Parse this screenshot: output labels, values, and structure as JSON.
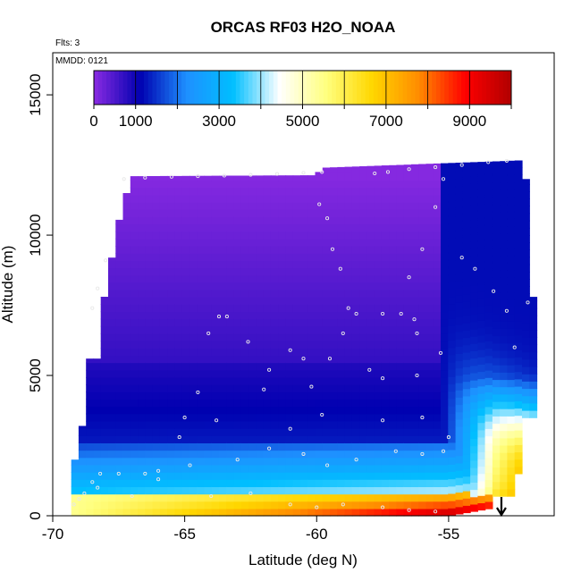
{
  "chart_data": {
    "type": "heatmap",
    "title": "ORCAS RF03 H2O_NOAA",
    "xlabel": "Latitude (deg N)",
    "ylabel": "Altitude (m)",
    "flights_note": "Flts: 3",
    "date_note": "MMDD: 0121",
    "xlim": [
      -70,
      -51
    ],
    "ylim": [
      0,
      16500
    ],
    "x_ticks": [
      -70,
      -65,
      -60,
      -55
    ],
    "y_ticks": [
      0,
      5000,
      10000,
      15000
    ],
    "colorbar": {
      "range": [
        0,
        10000
      ],
      "tick_values": [
        0,
        1000,
        3000,
        5000,
        7000,
        9000
      ],
      "divisions": [
        1000,
        2000,
        3000,
        4000,
        5000,
        6000,
        7000,
        8000,
        9000
      ],
      "colors": [
        "#8a2be2",
        "#0000b0",
        "#1e90ff",
        "#00bfff",
        "#ffffff",
        "#ffff80",
        "#ffd700",
        "#ff8c00",
        "#ff0000",
        "#b00000"
      ]
    },
    "arrow_marker_lat": -53,
    "flight_track": [
      [
        -67.3,
        12000
      ],
      [
        -66.5,
        12050
      ],
      [
        -65.5,
        12080
      ],
      [
        -64.5,
        12100
      ],
      [
        -63.5,
        12120
      ],
      [
        -62.5,
        12150
      ],
      [
        -61.5,
        12180
      ],
      [
        -60.5,
        12220
      ],
      [
        -59.8,
        12250
      ],
      [
        -57.8,
        12200
      ],
      [
        -57.3,
        12250
      ],
      [
        -56.5,
        12350
      ],
      [
        -55.5,
        12420
      ],
      [
        -54.5,
        12500
      ],
      [
        -53.5,
        12600
      ],
      [
        -52.8,
        12650
      ],
      [
        -59.9,
        11100
      ],
      [
        -59.6,
        10600
      ],
      [
        -59.4,
        9500
      ],
      [
        -59.1,
        8800
      ],
      [
        -58.8,
        7400
      ],
      [
        -58.5,
        7200
      ],
      [
        -57.5,
        7200
      ],
      [
        -56.8,
        7200
      ],
      [
        -56.3,
        7000
      ],
      [
        -56.5,
        8500
      ],
      [
        -56.0,
        9500
      ],
      [
        -55.5,
        11000
      ],
      [
        -55.2,
        12000
      ],
      [
        -54.5,
        9200
      ],
      [
        -54.0,
        8800
      ],
      [
        -53.3,
        8000
      ],
      [
        -52.8,
        7300
      ],
      [
        -52.0,
        7600
      ],
      [
        -52.5,
        6000
      ],
      [
        -56.2,
        6500
      ],
      [
        -59.0,
        6500
      ],
      [
        -68.3,
        8100
      ],
      [
        -68.5,
        7400
      ],
      [
        -68.0,
        9100
      ],
      [
        -63.7,
        7100
      ],
      [
        -63.4,
        7100
      ],
      [
        -64.1,
        6500
      ],
      [
        -62.6,
        6200
      ],
      [
        -61.8,
        5200
      ],
      [
        -61.0,
        5900
      ],
      [
        -60.5,
        5600
      ],
      [
        -60.2,
        4600
      ],
      [
        -59.5,
        5600
      ],
      [
        -58.0,
        5200
      ],
      [
        -57.5,
        4900
      ],
      [
        -56.2,
        5000
      ],
      [
        -55.3,
        5800
      ],
      [
        -64.5,
        4400
      ],
      [
        -65.0,
        3500
      ],
      [
        -63.8,
        3400
      ],
      [
        -61.0,
        3100
      ],
      [
        -59.8,
        3600
      ],
      [
        -57.5,
        3400
      ],
      [
        -56.0,
        3500
      ],
      [
        -55.0,
        2800
      ],
      [
        -68.2,
        1500
      ],
      [
        -67.5,
        1500
      ],
      [
        -66.0,
        1600
      ],
      [
        -64.8,
        1800
      ],
      [
        -63.0,
        2000
      ],
      [
        -61.8,
        2400
      ],
      [
        -60.5,
        2200
      ],
      [
        -59.6,
        1800
      ],
      [
        -58.5,
        2000
      ],
      [
        -57.0,
        2300
      ],
      [
        -56.0,
        2200
      ],
      [
        -55.2,
        2300
      ],
      [
        -68.5,
        1200
      ],
      [
        -68.8,
        800
      ],
      [
        -69.0,
        600
      ],
      [
        -67.0,
        700
      ],
      [
        -66.0,
        1300
      ],
      [
        -64.0,
        700
      ],
      [
        -62.5,
        800
      ],
      [
        -61.0,
        400
      ],
      [
        -60.0,
        300
      ],
      [
        -59.0,
        400
      ],
      [
        -57.5,
        300
      ],
      [
        -56.5,
        200
      ],
      [
        -55.5,
        150
      ],
      [
        -69.2,
        400
      ],
      [
        -68.3,
        1000
      ],
      [
        -66.5,
        1500
      ],
      [
        -65.2,
        2800
      ],
      [
        -62.0,
        4500
      ]
    ]
  }
}
